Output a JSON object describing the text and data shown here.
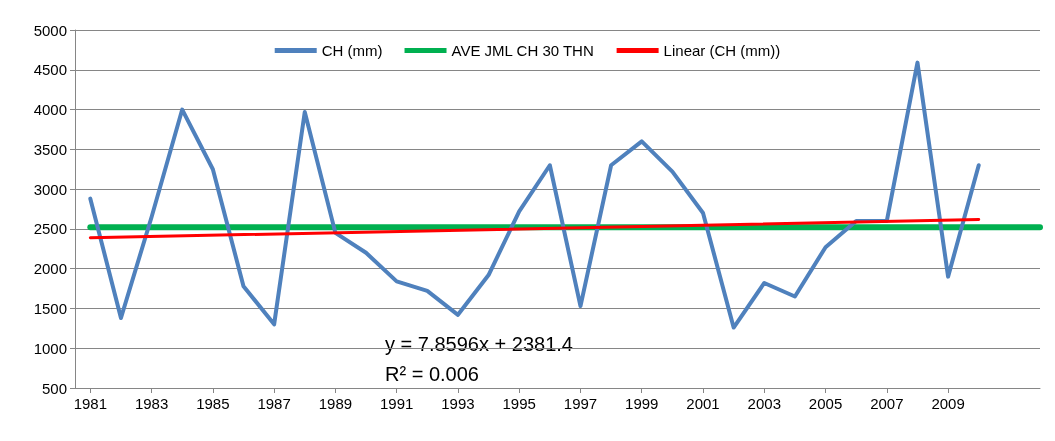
{
  "chart_data": {
    "type": "line",
    "xlim": [
      1980.5,
      2012
    ],
    "xticks": [
      1981,
      1983,
      1985,
      1987,
      1989,
      1991,
      1993,
      1995,
      1997,
      1999,
      2001,
      2003,
      2005,
      2007,
      2009
    ],
    "ylim": [
      500,
      5000
    ],
    "yticks": [
      500,
      1000,
      1500,
      2000,
      2500,
      3000,
      3500,
      4000,
      4500,
      5000
    ],
    "grid": "y",
    "legend": "top",
    "marker": "none",
    "line_style": "solid",
    "series": [
      {
        "name": "CH (mm)",
        "color": "#4f81bd",
        "x": [
          1981,
          1982,
          1983,
          1984,
          1985,
          1986,
          1987,
          1988,
          1989,
          1990,
          1991,
          1992,
          1993,
          1994,
          1995,
          1996,
          1997,
          1998,
          1999,
          2000,
          2001,
          2002,
          2003,
          2004,
          2005,
          2006,
          2007,
          2008,
          2009,
          2010
        ],
        "values": [
          2880,
          1380,
          2650,
          4000,
          3250,
          1780,
          1300,
          3970,
          2450,
          2200,
          1840,
          1720,
          1420,
          1920,
          2720,
          3300,
          1530,
          3300,
          3600,
          3220,
          2700,
          1260,
          1820,
          1650,
          2270,
          2600,
          2600,
          4590,
          1900,
          3300
        ]
      },
      {
        "name": "AVE JML CH 30 THN",
        "color": "#00b050",
        "x": [
          1981,
          2012
        ],
        "values": [
          2520,
          2520
        ]
      },
      {
        "name": "Linear (CH (mm))",
        "color": "#ff0000",
        "x": [
          1981,
          2010
        ],
        "values": [
          2389,
          2617
        ]
      }
    ],
    "annotations": [
      "y = 7.8596x + 2381.4",
      "R² = 0.006"
    ]
  }
}
